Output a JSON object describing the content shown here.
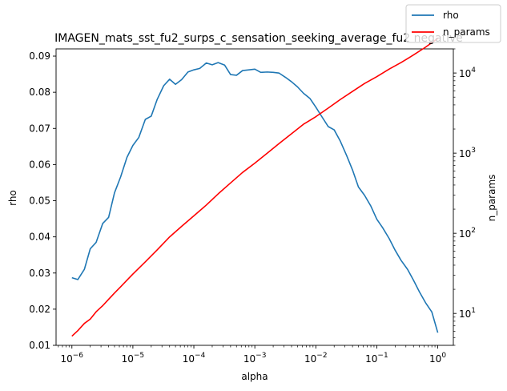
{
  "chart_data": {
    "type": "line",
    "title": "IMAGEN_mats_sst_fu2_surps_c_sensation_seeking_average_fu2 negative",
    "xlabel": "alpha",
    "ylabel_left": "rho",
    "ylabel_right": "n_params",
    "x_scale": "log",
    "y_right_scale": "log",
    "xlim": [
      5.5e-07,
      1.8
    ],
    "ylim_left": [
      0.01,
      0.092
    ],
    "ylim_right": [
      4.0,
      20000
    ],
    "x_ticks": [
      {
        "value": 1e-06,
        "base": "10",
        "exp": "−6"
      },
      {
        "value": 1e-05,
        "base": "10",
        "exp": "−5"
      },
      {
        "value": 0.0001,
        "base": "10",
        "exp": "−4"
      },
      {
        "value": 0.001,
        "base": "10",
        "exp": "−3"
      },
      {
        "value": 0.01,
        "base": "10",
        "exp": "−2"
      },
      {
        "value": 0.1,
        "base": "10",
        "exp": "−1"
      },
      {
        "value": 1,
        "base": "10",
        "exp": "0"
      }
    ],
    "y_left_ticks": [
      {
        "value": 0.01,
        "label": "0.01"
      },
      {
        "value": 0.02,
        "label": "0.02"
      },
      {
        "value": 0.03,
        "label": "0.03"
      },
      {
        "value": 0.04,
        "label": "0.04"
      },
      {
        "value": 0.05,
        "label": "0.05"
      },
      {
        "value": 0.06,
        "label": "0.06"
      },
      {
        "value": 0.07,
        "label": "0.07"
      },
      {
        "value": 0.08,
        "label": "0.08"
      },
      {
        "value": 0.09,
        "label": "0.09"
      }
    ],
    "y_right_ticks": [
      {
        "value": 10,
        "base": "10",
        "exp": "1"
      },
      {
        "value": 100,
        "base": "10",
        "exp": "2"
      },
      {
        "value": 1000,
        "base": "10",
        "exp": "3"
      },
      {
        "value": 10000,
        "base": "10",
        "exp": "4"
      }
    ],
    "legend": {
      "placement": "top-right",
      "entries": [
        "rho",
        "n_params"
      ]
    },
    "series": [
      {
        "name": "rho",
        "axis": "left",
        "color": "#1f77b4",
        "x": [
          1e-06,
          1.25e-06,
          1.6e-06,
          2e-06,
          2.5e-06,
          3.2e-06,
          4e-06,
          5e-06,
          6.3e-06,
          8e-06,
          1e-05,
          1.25e-05,
          1.6e-05,
          2e-05,
          2.5e-05,
          3.2e-05,
          4e-05,
          5e-05,
          6.3e-05,
          8e-05,
          0.0001,
          0.000125,
          0.00016,
          0.0002,
          0.00025,
          0.00032,
          0.0004,
          0.0005,
          0.00063,
          0.0008,
          0.001,
          0.00125,
          0.0016,
          0.002,
          0.0025,
          0.0032,
          0.004,
          0.005,
          0.0063,
          0.008,
          0.01,
          0.0125,
          0.016,
          0.02,
          0.025,
          0.032,
          0.04,
          0.05,
          0.063,
          0.08,
          0.1,
          0.125,
          0.16,
          0.2,
          0.25,
          0.32,
          0.4,
          0.5,
          0.63,
          0.8,
          1
        ],
        "y": [
          0.0287,
          0.0282,
          0.031,
          0.0367,
          0.0385,
          0.0437,
          0.0454,
          0.0522,
          0.0566,
          0.062,
          0.0653,
          0.0675,
          0.0725,
          0.0734,
          0.078,
          0.0818,
          0.0836,
          0.0822,
          0.0835,
          0.0856,
          0.0862,
          0.0866,
          0.0881,
          0.0876,
          0.0882,
          0.0875,
          0.0849,
          0.0847,
          0.086,
          0.0862,
          0.0864,
          0.0855,
          0.0856,
          0.0855,
          0.0853,
          0.0841,
          0.0829,
          0.0815,
          0.0797,
          0.0783,
          0.0759,
          0.0733,
          0.0705,
          0.0696,
          0.0666,
          0.0625,
          0.0585,
          0.0538,
          0.0515,
          0.0485,
          0.0449,
          0.0425,
          0.0395,
          0.0363,
          0.0335,
          0.031,
          0.028,
          0.0248,
          0.0218,
          0.0192,
          0.0135
        ]
      },
      {
        "name": "n_params",
        "axis": "right",
        "color": "#ff0000",
        "x": [
          1e-06,
          1.25e-06,
          1.6e-06,
          2e-06,
          2.5e-06,
          3.2e-06,
          4e-06,
          5e-06,
          6.3e-06,
          8e-06,
          1e-05,
          1.6e-05,
          2.5e-05,
          4e-05,
          6.3e-05,
          0.0001,
          0.00016,
          0.00025,
          0.0004,
          0.00063,
          0.001,
          0.0016,
          0.0025,
          0.004,
          0.0063,
          0.01,
          0.016,
          0.025,
          0.04,
          0.063,
          0.1,
          0.16,
          0.25,
          0.4,
          0.63,
          1
        ],
        "y": [
          5.2,
          6.1,
          7.5,
          8.5,
          10.5,
          12.5,
          15,
          18,
          21.5,
          26,
          31,
          44,
          62,
          90,
          122,
          165,
          225,
          310,
          425,
          575,
          750,
          1000,
          1320,
          1750,
          2300,
          2850,
          3650,
          4650,
          5900,
          7400,
          9000,
          11200,
          13500,
          16800,
          21000,
          27000
        ]
      }
    ]
  }
}
